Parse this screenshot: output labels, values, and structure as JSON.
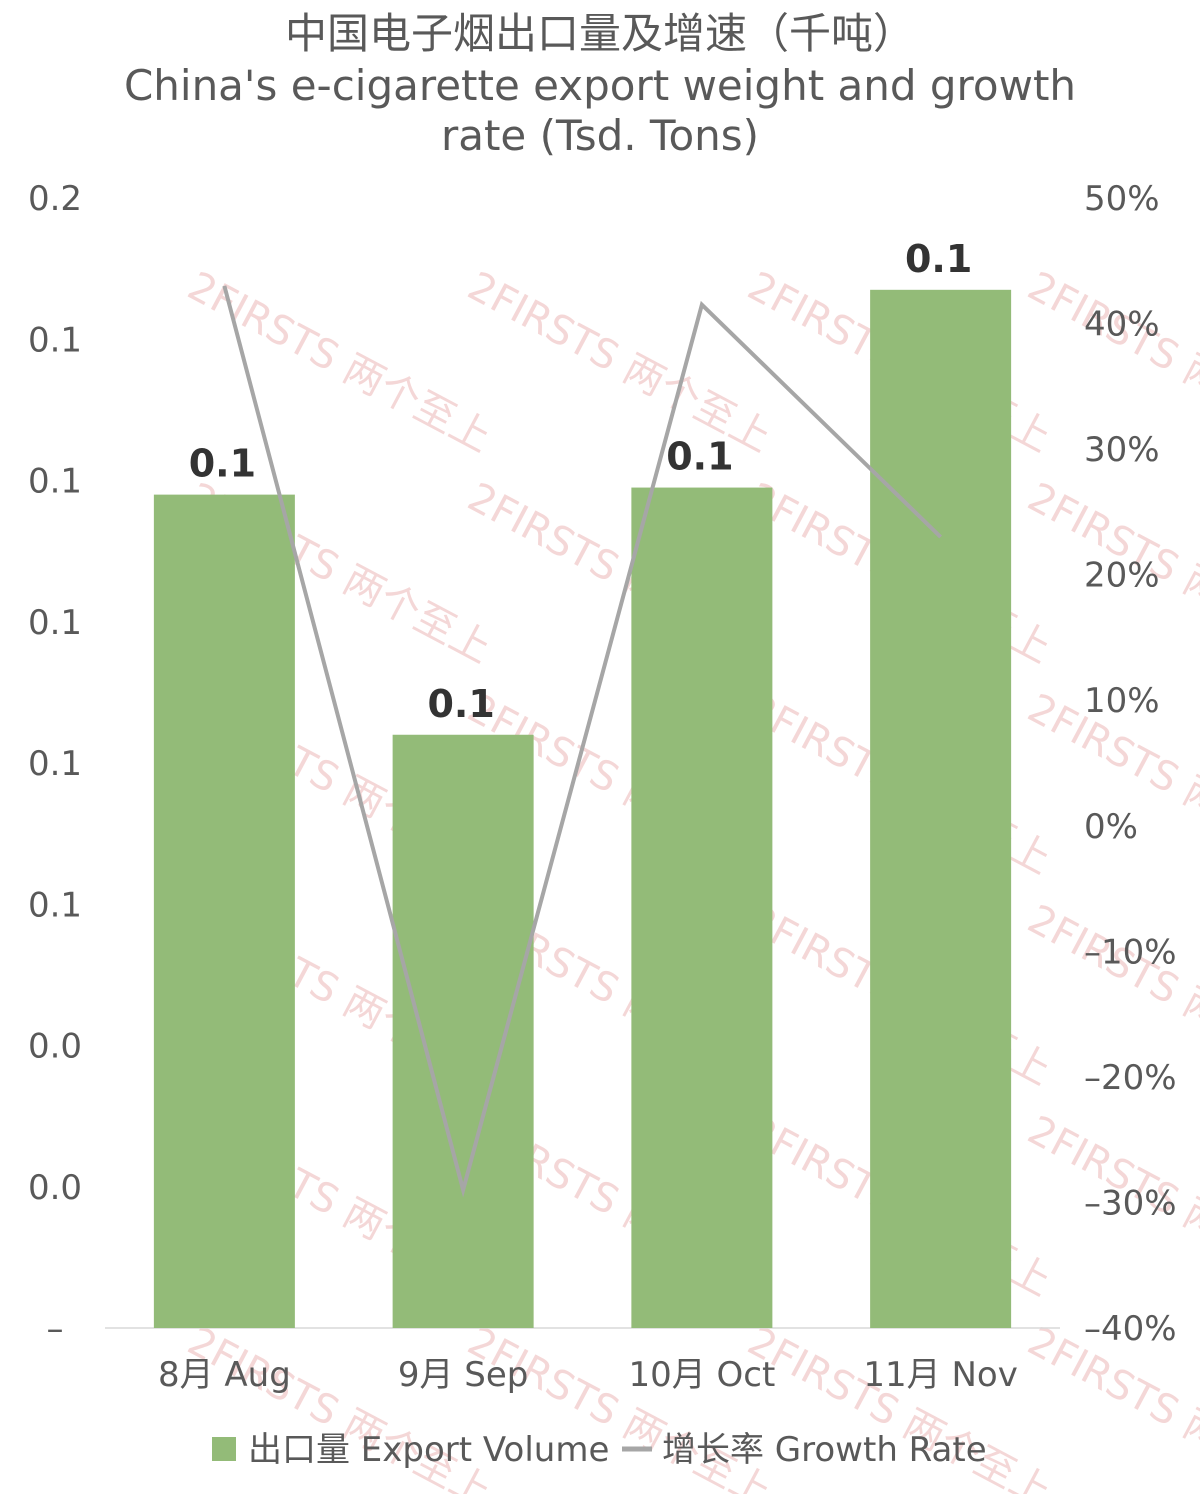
{
  "chart_data": {
    "type": "bar",
    "title": "中国电子烟出口量及增速（千吨）",
    "subtitle": "China's e-cigarette export weight and growth rate (Tsd. Tons)",
    "categories": [
      "8月 Aug",
      "9月 Sep",
      "10月 Oct",
      "11月 Nov"
    ],
    "series": [
      {
        "name": "出口量 Export Volume",
        "type": "bar",
        "axis": "left",
        "color": "#93bb78",
        "values": [
          0.118,
          0.084,
          0.119,
          0.147
        ],
        "data_labels": [
          "0.1",
          "0.1",
          "0.1",
          "0.1"
        ]
      },
      {
        "name": "增长率 Growth Rate",
        "type": "line",
        "axis": "right",
        "color": "#a6a6a6",
        "values": [
          0.43,
          -0.29,
          0.415,
          0.23
        ]
      }
    ],
    "y_left": {
      "ylim": [
        0,
        0.16
      ],
      "tick_values": [
        0,
        0.02,
        0.04,
        0.06,
        0.08,
        0.1,
        0.12,
        0.14,
        0.16
      ],
      "tick_labels": [
        "–",
        "0.0",
        "0.0",
        "0.1",
        "0.1",
        "0.1",
        "0.1",
        "0.1",
        "0.2"
      ]
    },
    "y_right": {
      "ylim": [
        -0.4,
        0.5
      ],
      "tick_values": [
        -0.4,
        -0.3,
        -0.2,
        -0.1,
        0,
        0.1,
        0.2,
        0.3,
        0.4,
        0.5
      ],
      "tick_labels": [
        "–40%",
        "–30%",
        "–20%",
        "–10%",
        "0%",
        "10%",
        "20%",
        "30%",
        "40%",
        "50%"
      ]
    },
    "grid": false,
    "legend_position": "bottom"
  },
  "watermark": {
    "text": "2FIRSTS 两个至上"
  }
}
